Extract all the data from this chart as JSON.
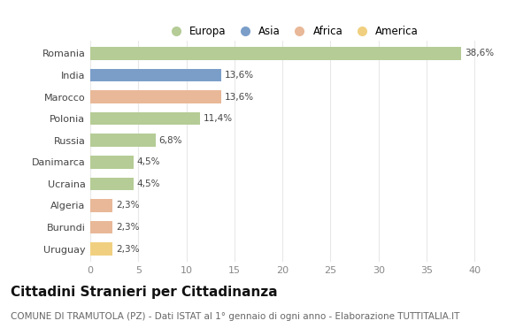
{
  "categories": [
    "Romania",
    "India",
    "Marocco",
    "Polonia",
    "Russia",
    "Danimarca",
    "Ucraina",
    "Algeria",
    "Burundi",
    "Uruguay"
  ],
  "values": [
    38.6,
    13.6,
    13.6,
    11.4,
    6.8,
    4.5,
    4.5,
    2.3,
    2.3,
    2.3
  ],
  "labels": [
    "38,6%",
    "13,6%",
    "13,6%",
    "11,4%",
    "6,8%",
    "4,5%",
    "4,5%",
    "2,3%",
    "2,3%",
    "2,3%"
  ],
  "colors": [
    "#b5cc96",
    "#7b9ec9",
    "#e8b898",
    "#b5cc96",
    "#b5cc96",
    "#b5cc96",
    "#b5cc96",
    "#e8b898",
    "#e8b898",
    "#f0d080"
  ],
  "legend_labels": [
    "Europa",
    "Asia",
    "Africa",
    "America"
  ],
  "legend_colors": [
    "#b5cc96",
    "#7b9ec9",
    "#e8b898",
    "#f0d080"
  ],
  "xlim": [
    0,
    42
  ],
  "xticks": [
    0,
    5,
    10,
    15,
    20,
    25,
    30,
    35,
    40
  ],
  "title": "Cittadini Stranieri per Cittadinanza",
  "subtitle": "COMUNE DI TRAMUTOLA (PZ) - Dati ISTAT al 1° gennaio di ogni anno - Elaborazione TUTTITALIA.IT",
  "bg_color": "#ffffff",
  "plot_bg_color": "#ffffff",
  "grid_color": "#e8e8e8",
  "title_fontsize": 11,
  "subtitle_fontsize": 7.5,
  "label_fontsize": 7.5,
  "tick_fontsize": 8,
  "legend_fontsize": 8.5
}
